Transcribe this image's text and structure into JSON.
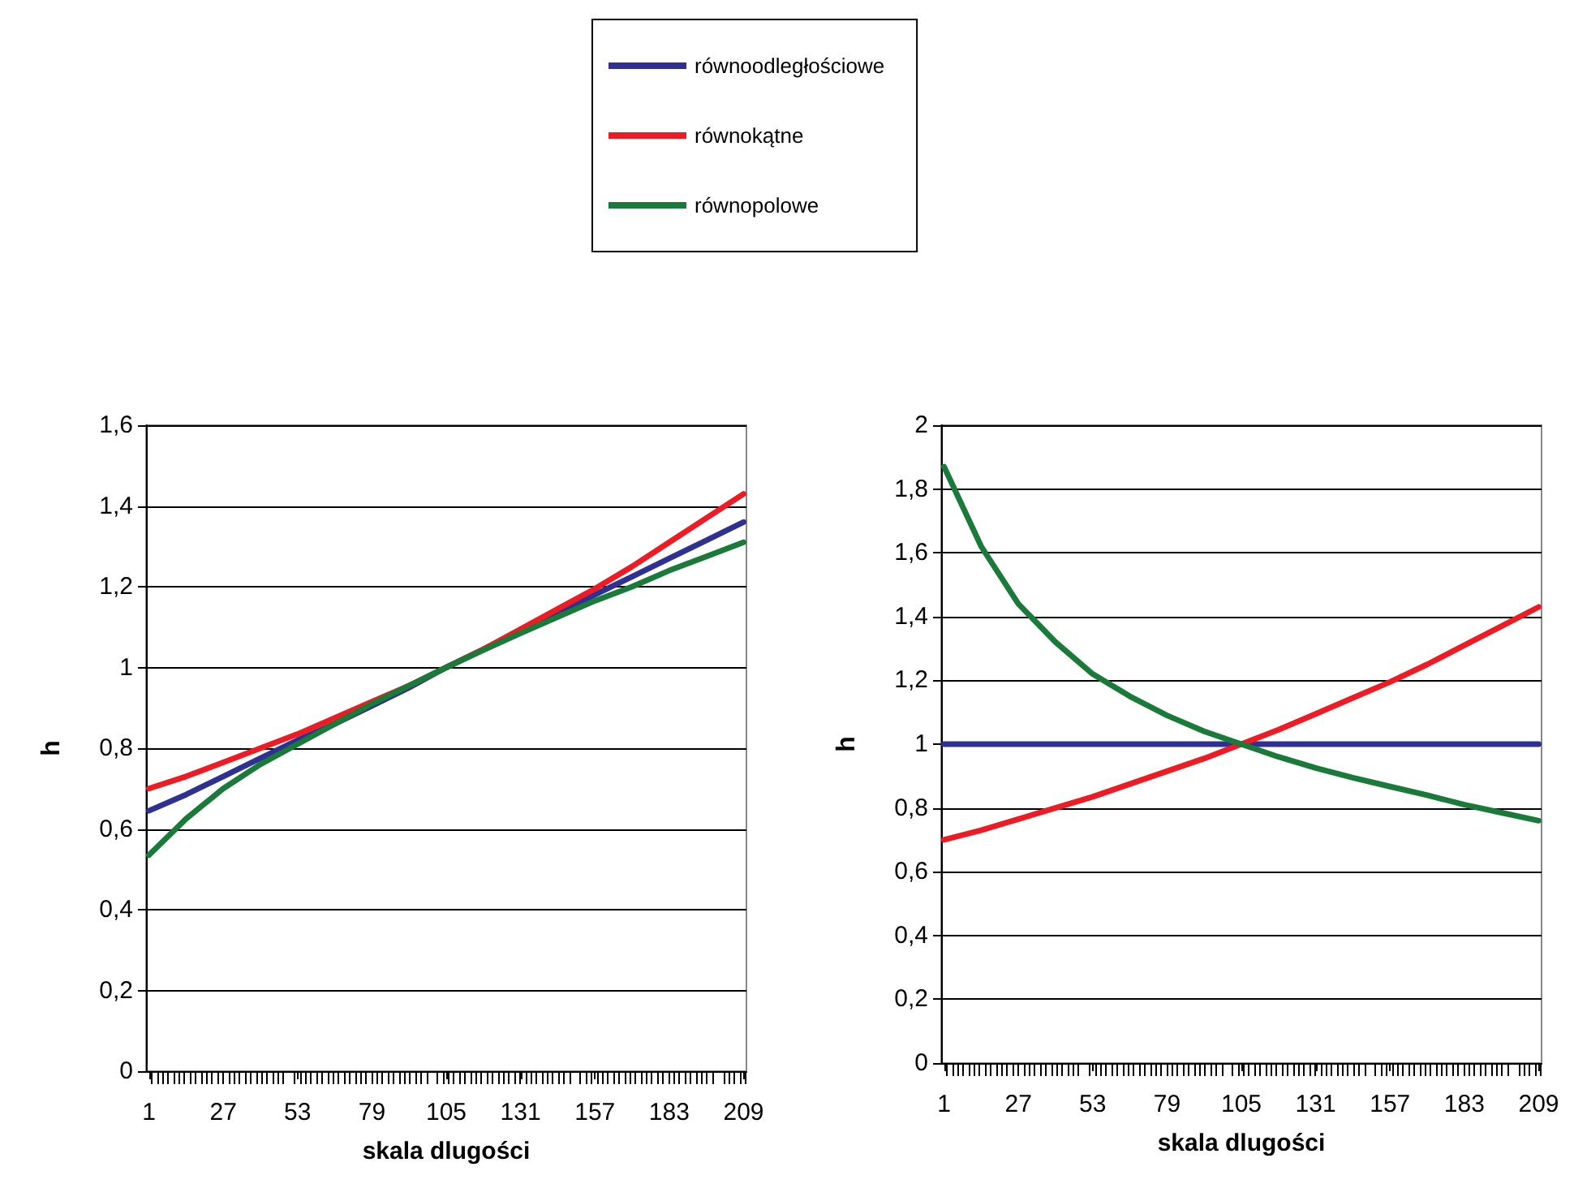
{
  "chart_data": [
    {
      "type": "line",
      "xlabel": "skala dlugości",
      "ylabel": "h",
      "xlim": [
        0,
        210
      ],
      "xticks": [
        1,
        27,
        53,
        79,
        105,
        131,
        157,
        183,
        209
      ],
      "ylim": [
        0,
        1.6
      ],
      "yticks": [
        0,
        {
          "value": 0.2,
          "label": "0,2"
        },
        {
          "value": 0.4,
          "label": "0,4"
        },
        {
          "value": 0.6,
          "label": "0,6"
        },
        {
          "value": 0.8,
          "label": "0,8"
        },
        1,
        {
          "value": 1.2,
          "label": "1,2"
        },
        {
          "value": 1.4,
          "label": "1,4"
        },
        {
          "value": 1.6,
          "label": "1,6"
        }
      ],
      "grid": "y",
      "legend": "top",
      "x": [
        1,
        14,
        27,
        40,
        53,
        66,
        79,
        92,
        105,
        118,
        131,
        144,
        157,
        170,
        183,
        196,
        209
      ],
      "series": [
        {
          "name": "równoodległościowe",
          "color": "#2e3192",
          "values": [
            0.645,
            0.685,
            0.73,
            0.775,
            0.82,
            0.86,
            0.905,
            0.95,
            1.0,
            1.045,
            1.09,
            1.135,
            1.18,
            1.225,
            1.27,
            1.315,
            1.36
          ]
        },
        {
          "name": "równokątne",
          "color": "#ed1c24",
          "values": [
            0.7,
            0.73,
            0.765,
            0.8,
            0.835,
            0.875,
            0.915,
            0.955,
            1.0,
            1.045,
            1.095,
            1.145,
            1.195,
            1.25,
            1.31,
            1.37,
            1.43
          ]
        },
        {
          "name": "równopolowe",
          "color": "#1a7a3a",
          "values": [
            0.535,
            0.625,
            0.7,
            0.76,
            0.81,
            0.86,
            0.91,
            0.955,
            1.0,
            1.043,
            1.085,
            1.125,
            1.165,
            1.2,
            1.24,
            1.275,
            1.31
          ]
        }
      ]
    },
    {
      "type": "line",
      "xlabel": "skala dlugości",
      "ylabel": "h",
      "xlim": [
        0,
        210
      ],
      "xticks": [
        1,
        27,
        53,
        79,
        105,
        131,
        157,
        183,
        209
      ],
      "ylim": [
        0,
        2
      ],
      "yticks": [
        0,
        {
          "value": 0.2,
          "label": "0,2"
        },
        {
          "value": 0.4,
          "label": "0,4"
        },
        {
          "value": 0.6,
          "label": "0,6"
        },
        {
          "value": 0.8,
          "label": "0,8"
        },
        1,
        {
          "value": 1.2,
          "label": "1,2"
        },
        {
          "value": 1.4,
          "label": "1,4"
        },
        {
          "value": 1.6,
          "label": "1,6"
        },
        {
          "value": 1.8,
          "label": "1,8"
        },
        2
      ],
      "grid": "y",
      "x": [
        1,
        14,
        27,
        40,
        53,
        66,
        79,
        92,
        105,
        118,
        131,
        144,
        157,
        170,
        183,
        196,
        209
      ],
      "series": [
        {
          "color": "#2e3192",
          "values": [
            1,
            1,
            1,
            1,
            1,
            1,
            1,
            1,
            1,
            1,
            1,
            1,
            1,
            1,
            1,
            1,
            1
          ]
        },
        {
          "color": "#ed1c24",
          "values": [
            0.7,
            0.73,
            0.765,
            0.8,
            0.835,
            0.875,
            0.915,
            0.955,
            1.0,
            1.045,
            1.095,
            1.145,
            1.195,
            1.25,
            1.31,
            1.37,
            1.43
          ]
        },
        {
          "color": "#1a7a3a",
          "values": [
            1.87,
            1.62,
            1.44,
            1.32,
            1.22,
            1.15,
            1.09,
            1.04,
            1.0,
            0.96,
            0.925,
            0.895,
            0.867,
            0.84,
            0.81,
            0.785,
            0.76
          ]
        }
      ]
    }
  ]
}
